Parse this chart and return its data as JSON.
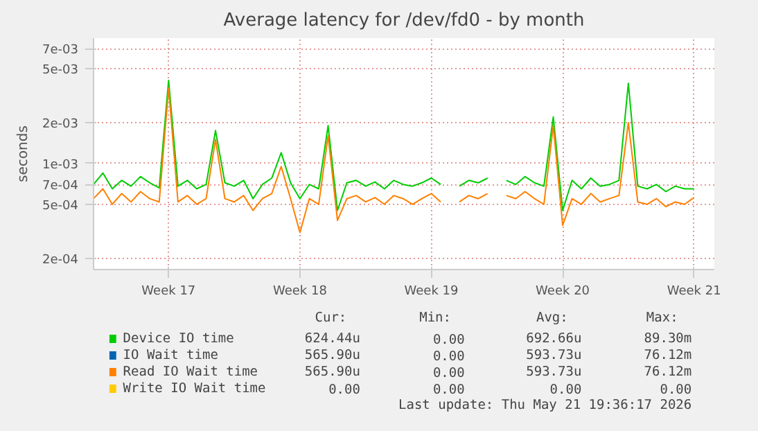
{
  "chart_data": {
    "type": "line",
    "title": "Average latency for /dev/fd0 - by month",
    "ylabel": "seconds",
    "log": "y",
    "grid": true,
    "legend": "bottom",
    "ylim": [
      0.000165,
      0.0084
    ],
    "yticks": [
      {
        "value": 0.0002,
        "label": "2e-04"
      },
      {
        "value": 0.0005,
        "label": "5e-04"
      },
      {
        "value": 0.0007,
        "label": "7e-04"
      },
      {
        "value": 0.001,
        "label": "1e-03"
      },
      {
        "value": 0.002,
        "label": "2e-03"
      },
      {
        "value": 0.005,
        "label": "5e-03"
      },
      {
        "value": 0.007,
        "label": "7e-03"
      }
    ],
    "xlim": [
      "2026-04-19T12:00",
      "2026-05-22T14:00"
    ],
    "xticks": [
      {
        "value": "2026-04-23T12:00",
        "label": "Week 17"
      },
      {
        "value": "2026-04-30T12:00",
        "label": "Week 18"
      },
      {
        "value": "2026-05-07T12:00",
        "label": "Week 19"
      },
      {
        "value": "2026-05-14T12:00",
        "label": "Week 20"
      },
      {
        "value": "2026-05-21T12:00",
        "label": "Week 21"
      }
    ],
    "x": [
      "2026-04-19T12:00",
      "2026-04-20T00:00",
      "2026-04-20T12:00",
      "2026-04-21T00:00",
      "2026-04-21T12:00",
      "2026-04-22T00:00",
      "2026-04-22T12:00",
      "2026-04-23T00:00",
      "2026-04-23T12:00",
      "2026-04-24T00:00",
      "2026-04-24T12:00",
      "2026-04-25T00:00",
      "2026-04-25T12:00",
      "2026-04-26T00:00",
      "2026-04-26T12:00",
      "2026-04-27T00:00",
      "2026-04-27T12:00",
      "2026-04-28T00:00",
      "2026-04-28T12:00",
      "2026-04-29T00:00",
      "2026-04-29T12:00",
      "2026-04-30T00:00",
      "2026-04-30T12:00",
      "2026-05-01T00:00",
      "2026-05-01T12:00",
      "2026-05-02T00:00",
      "2026-05-02T12:00",
      "2026-05-03T00:00",
      "2026-05-03T12:00",
      "2026-05-04T00:00",
      "2026-05-04T12:00",
      "2026-05-05T00:00",
      "2026-05-05T12:00",
      "2026-05-06T00:00",
      "2026-05-06T12:00",
      "2026-05-07T00:00",
      "2026-05-07T12:00",
      "2026-05-08T00:00",
      "2026-05-08T12:00",
      "2026-05-09T00:00",
      "2026-05-09T12:00",
      "2026-05-10T00:00",
      "2026-05-10T12:00",
      "2026-05-11T00:00",
      "2026-05-11T12:00",
      "2026-05-12T00:00",
      "2026-05-12T12:00",
      "2026-05-13T00:00",
      "2026-05-13T12:00",
      "2026-05-14T00:00",
      "2026-05-14T12:00",
      "2026-05-15T00:00",
      "2026-05-15T12:00",
      "2026-05-16T00:00",
      "2026-05-16T12:00",
      "2026-05-17T00:00",
      "2026-05-17T12:00",
      "2026-05-18T00:00",
      "2026-05-18T12:00",
      "2026-05-19T00:00",
      "2026-05-19T12:00",
      "2026-05-20T00:00",
      "2026-05-20T12:00",
      "2026-05-21T00:00",
      "2026-05-21T12:00"
    ],
    "series": [
      {
        "name": "Device IO time",
        "color": "#00cc00",
        "values": [
          0.0007,
          0.00085,
          0.00065,
          0.00075,
          0.00068,
          0.0008,
          0.00072,
          0.00066,
          0.0041,
          0.00068,
          0.00075,
          0.00065,
          0.0007,
          0.00175,
          0.00072,
          0.00068,
          0.00075,
          0.00055,
          0.0007,
          0.00078,
          0.0012,
          0.00072,
          0.00055,
          0.0007,
          0.00065,
          0.0019,
          0.00045,
          0.00072,
          0.00075,
          0.00068,
          0.00073,
          0.00065,
          0.00075,
          0.0007,
          0.00068,
          0.00072,
          0.00078,
          0.0007,
          null,
          0.00068,
          0.00075,
          0.00072,
          0.00078,
          null,
          0.00075,
          0.0007,
          0.0008,
          0.00072,
          0.00068,
          0.0022,
          0.00045,
          0.00075,
          0.00065,
          0.00078,
          0.00068,
          0.0007,
          0.00075,
          0.0039,
          0.00068,
          0.00065,
          0.0007,
          0.00062,
          0.00068,
          0.00065,
          0.00065
        ]
      },
      {
        "name": "IO Wait time",
        "color": "#0066b3",
        "values": [
          null,
          null,
          null,
          null,
          null,
          null,
          null,
          null,
          null,
          null,
          null,
          null,
          null,
          null,
          null,
          null,
          null,
          null,
          null,
          null,
          null,
          null,
          null,
          null,
          null,
          null,
          null,
          null,
          null,
          null,
          null,
          null,
          null,
          null,
          null,
          null,
          null,
          null,
          null,
          null,
          null,
          null,
          null,
          null,
          null,
          null,
          null,
          null,
          null,
          null,
          null,
          null,
          null,
          null,
          null,
          null,
          null,
          null,
          null,
          null,
          null,
          null,
          null,
          null,
          null
        ]
      },
      {
        "name": "Read IO Wait time",
        "color": "#ff8000",
        "values": [
          0.00055,
          0.00065,
          0.0005,
          0.0006,
          0.00052,
          0.00062,
          0.00055,
          0.00052,
          0.0036,
          0.00052,
          0.00058,
          0.0005,
          0.00055,
          0.0015,
          0.00055,
          0.00052,
          0.00058,
          0.00045,
          0.00055,
          0.0006,
          0.00095,
          0.00055,
          0.00031,
          0.00055,
          0.0005,
          0.0016,
          0.00038,
          0.00055,
          0.00058,
          0.00052,
          0.00056,
          0.0005,
          0.00058,
          0.00055,
          0.0005,
          0.00055,
          0.0006,
          0.00052,
          null,
          0.00052,
          0.00058,
          0.00055,
          0.0006,
          null,
          0.00058,
          0.00055,
          0.00062,
          0.00055,
          0.0005,
          0.0019,
          0.00035,
          0.00055,
          0.0005,
          0.0006,
          0.00052,
          0.00055,
          0.00058,
          0.002,
          0.00052,
          0.0005,
          0.00055,
          0.00048,
          0.00052,
          0.0005,
          0.00056
        ]
      },
      {
        "name": "Write IO Wait time",
        "color": "#ffcc00",
        "values": [
          null,
          null,
          null,
          null,
          null,
          null,
          null,
          null,
          null,
          null,
          null,
          null,
          null,
          null,
          null,
          null,
          null,
          null,
          null,
          null,
          null,
          null,
          null,
          null,
          null,
          null,
          null,
          null,
          null,
          null,
          null,
          null,
          null,
          null,
          null,
          null,
          null,
          null,
          null,
          null,
          null,
          null,
          null,
          null,
          null,
          null,
          null,
          null,
          null,
          null,
          null,
          null,
          null,
          null,
          null,
          null,
          null,
          null,
          null,
          null,
          null,
          null,
          null,
          null,
          null
        ]
      }
    ],
    "annotations": [
      "Cur:",
      "Min:",
      "Avg:",
      "Max:",
      "624.44u",
      "0.00",
      "692.66u",
      "89.30m",
      "565.90u",
      "0.00",
      "593.73u",
      "76.12m",
      "565.90u",
      "0.00",
      "593.73u",
      "76.12m",
      "0.00",
      "0.00",
      "0.00",
      "0.00",
      "Last update: Thu May 21 19:36:17 2026"
    ]
  }
}
